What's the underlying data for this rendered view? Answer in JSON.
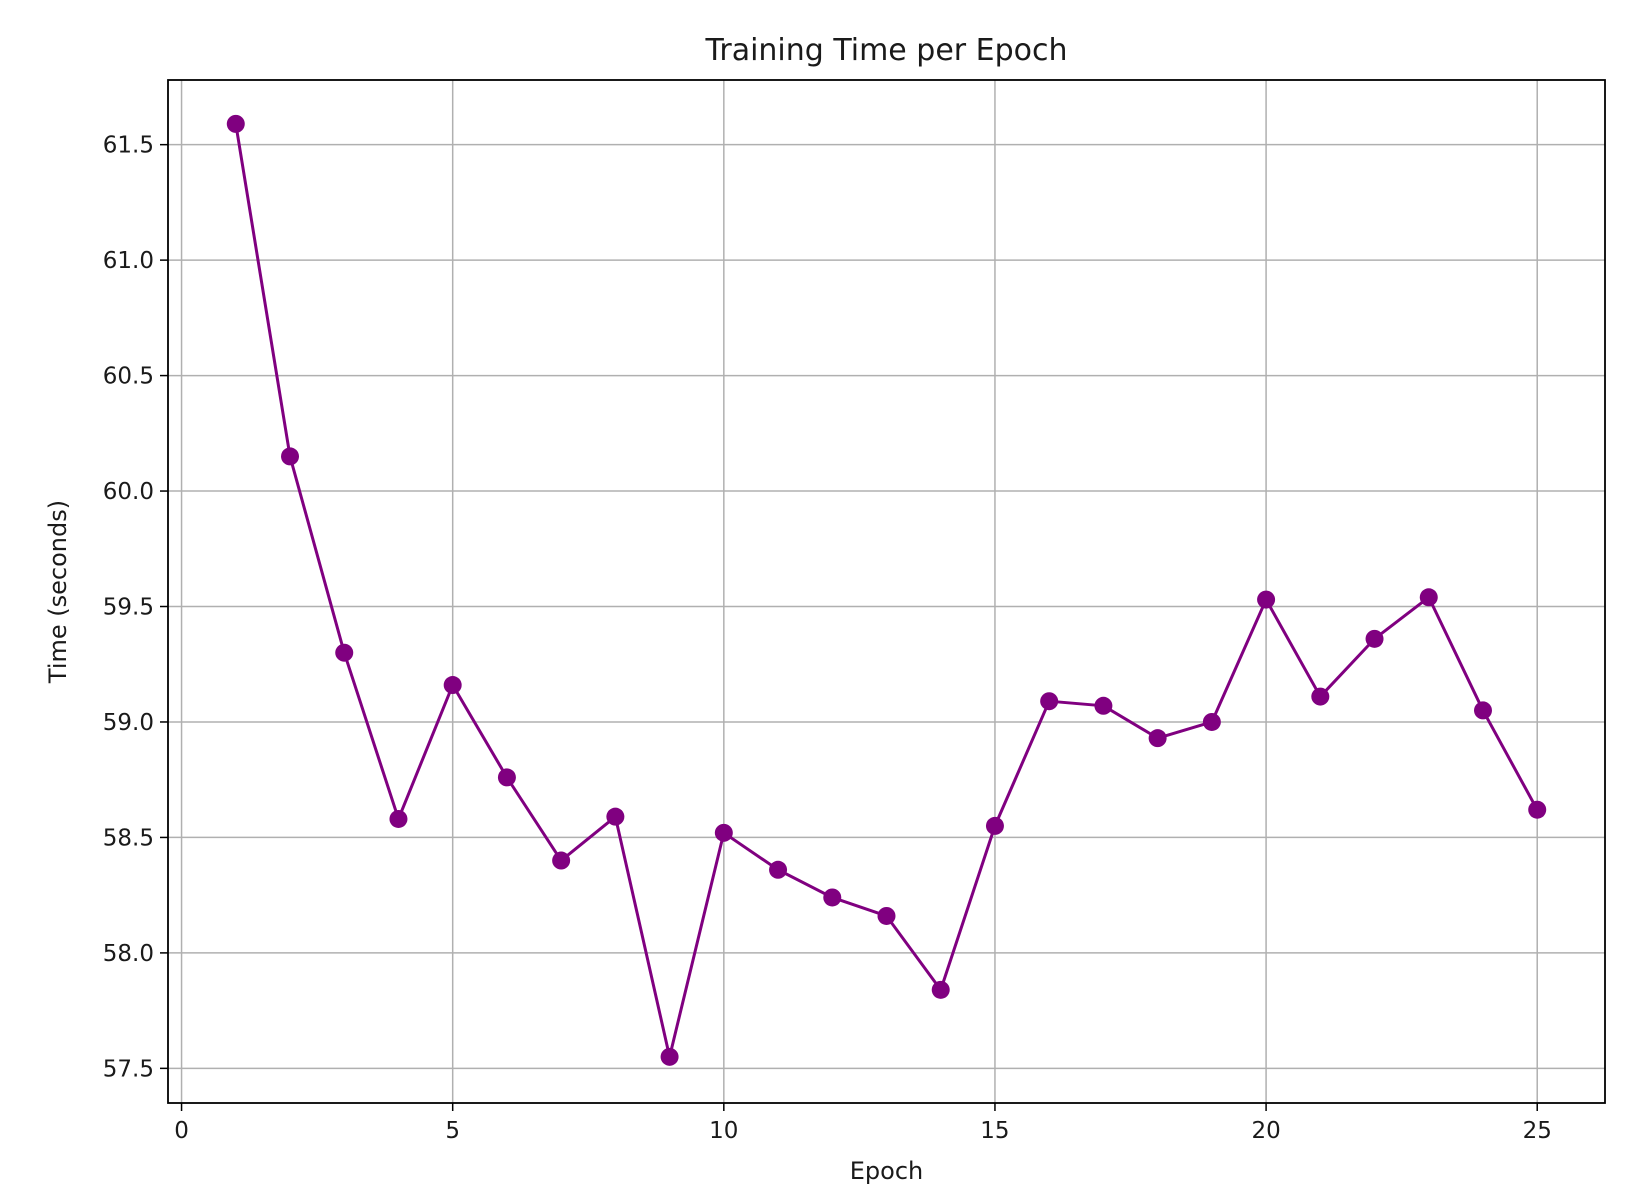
{
  "chart_data": {
    "type": "line",
    "title": "Training Time per Epoch",
    "xlabel": "Epoch",
    "ylabel": "Time (seconds)",
    "xlim": [
      -0.25,
      26.25
    ],
    "ylim": [
      57.35,
      61.78
    ],
    "xticks": [
      0,
      5,
      10,
      15,
      20,
      25
    ],
    "xtick_labels": [
      "0",
      "5",
      "10",
      "15",
      "20",
      "25"
    ],
    "yticks": [
      57.5,
      58.0,
      58.5,
      59.0,
      59.5,
      60.0,
      60.5,
      61.0,
      61.5
    ],
    "ytick_labels": [
      "57.5",
      "58.0",
      "58.5",
      "59.0",
      "59.5",
      "60.0",
      "60.5",
      "61.0",
      "61.5"
    ],
    "grid": true,
    "series": [
      {
        "color": "#800080",
        "marker": "circle",
        "x": [
          1,
          2,
          3,
          4,
          5,
          6,
          7,
          8,
          9,
          10,
          11,
          12,
          13,
          14,
          15,
          16,
          17,
          18,
          19,
          20,
          21,
          22,
          23,
          24,
          25
        ],
        "y": [
          61.59,
          60.15,
          59.3,
          58.58,
          59.16,
          58.76,
          58.4,
          58.59,
          57.55,
          58.52,
          58.36,
          58.24,
          58.16,
          57.84,
          58.55,
          59.09,
          59.07,
          58.93,
          59.0,
          59.53,
          59.11,
          59.36,
          59.54,
          59.05,
          58.62
        ]
      }
    ]
  }
}
